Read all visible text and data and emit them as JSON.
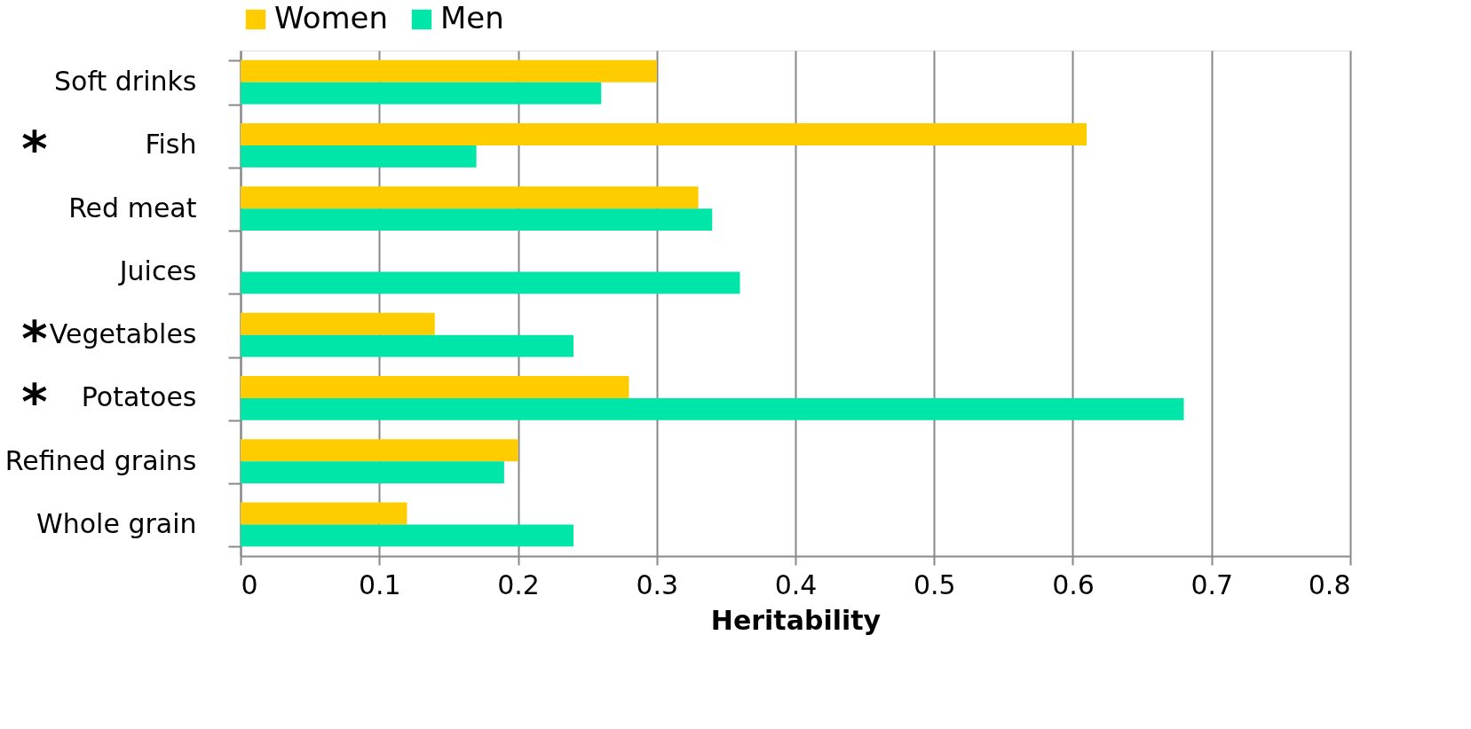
{
  "chart_data": {
    "type": "bar",
    "orientation": "horizontal",
    "xlabel": "Heritability",
    "categories": [
      "Soft drinks",
      "Fish",
      "Red meat",
      "Juices",
      "Vegetables",
      "Potatoes",
      "Refined grains",
      "Whole grain"
    ],
    "series": [
      {
        "name": "Women",
        "color": "#ffcc00",
        "values": [
          0.3,
          0.61,
          0.33,
          null,
          0.14,
          0.28,
          0.2,
          0.12
        ]
      },
      {
        "name": "Men",
        "color": "#00e5a8",
        "values": [
          0.26,
          0.17,
          0.34,
          0.36,
          0.24,
          0.68,
          0.19,
          0.24
        ]
      }
    ],
    "xlim": [
      0,
      0.8
    ],
    "xticks": [
      0,
      0.1,
      0.2,
      0.3,
      0.4,
      0.5,
      0.6,
      0.7,
      0.8
    ],
    "grid": "x",
    "legend": "top",
    "annotations": [
      "*",
      "*",
      "*"
    ]
  }
}
